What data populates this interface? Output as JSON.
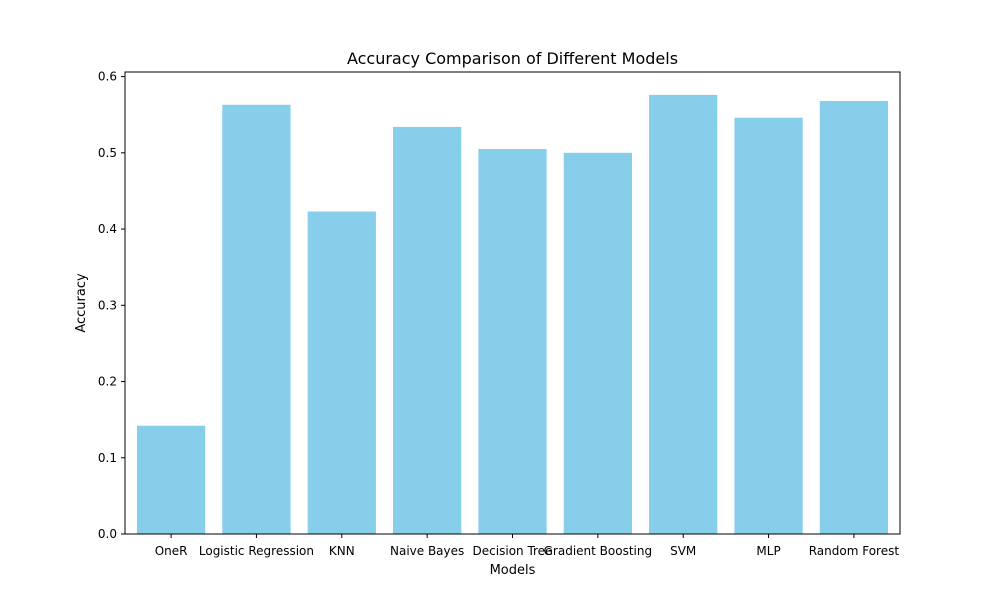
{
  "chart_data": {
    "type": "bar",
    "title": "Accuracy Comparison of Different Models",
    "xlabel": "Models",
    "ylabel": "Accuracy",
    "categories": [
      "OneR",
      "Logistic Regression",
      "KNN",
      "Naive Bayes",
      "Decision Tree",
      "Gradient Boosting",
      "SVM",
      "MLP",
      "Random Forest"
    ],
    "values": [
      0.142,
      0.563,
      0.423,
      0.534,
      0.505,
      0.5,
      0.576,
      0.546,
      0.568
    ],
    "ylim": [
      0,
      0.606
    ],
    "yticks": [
      "0.0",
      "0.1",
      "0.2",
      "0.3",
      "0.4",
      "0.5",
      "0.6"
    ],
    "bar_color": "#87CEEB",
    "grid": false,
    "legend": "none"
  }
}
